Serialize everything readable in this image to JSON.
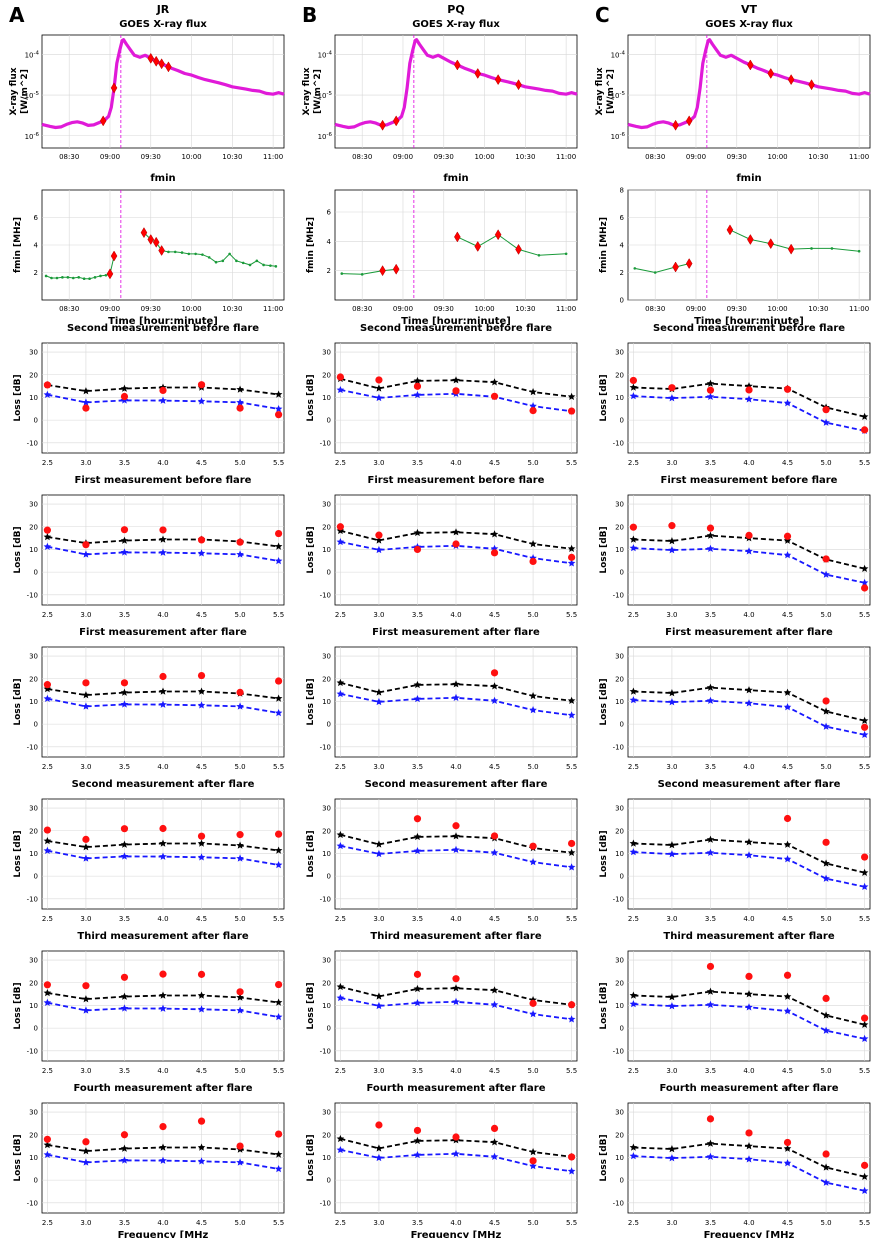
{
  "figure": {
    "panel_letters": [
      "A",
      "B",
      "C"
    ],
    "column_titles": [
      "JR",
      "PQ",
      "VT"
    ],
    "goes_title": "GOES X-ray flux",
    "goes_ylabel_line1": "X-ray flux",
    "goes_ylabel_line2": "[W/m^2]",
    "fmin_title": "fmin",
    "fmin_ylabel": "fmin [MHz]",
    "time_xlabel": "Time [hour:minute]",
    "loss_ylabel": "Loss [dB]",
    "freq_xlabel": "Frequency [MHz",
    "time_ticks": [
      "08:30",
      "09:00",
      "09:30",
      "10:00",
      "10:30",
      "11:00"
    ],
    "freq_ticks": [
      "2.5",
      "3.0",
      "3.5",
      "4.0",
      "4.5",
      "5.0",
      "5.5"
    ],
    "goes_ticks": [
      "10^-6",
      "10^-5",
      "10^-4"
    ],
    "loss_ticks": [
      "-10",
      "0",
      "10",
      "20",
      "30"
    ]
  },
  "chart_data": {
    "type": "multi-panel",
    "goes": {
      "type": "line",
      "scale": "log",
      "ylim": [
        5e-07,
        0.0003
      ],
      "xlim_minutes": [
        490,
        668
      ],
      "flare_start_minutes": 548,
      "curve": [
        [
          490,
          1.9e-06
        ],
        [
          496,
          1.7e-06
        ],
        [
          500,
          1.6e-06
        ],
        [
          504,
          1.65e-06
        ],
        [
          508,
          1.9e-06
        ],
        [
          512,
          2.1e-06
        ],
        [
          516,
          2.2e-06
        ],
        [
          520,
          2.05e-06
        ],
        [
          524,
          1.8e-06
        ],
        [
          528,
          1.85e-06
        ],
        [
          532,
          2.1e-06
        ],
        [
          536,
          2.4e-06
        ],
        [
          539,
          3e-06
        ],
        [
          541,
          5e-06
        ],
        [
          543,
          1.5e-05
        ],
        [
          545,
          6e-05
        ],
        [
          547,
          0.00012
        ],
        [
          549,
          0.00022
        ],
        [
          550,
          0.00023
        ],
        [
          552,
          0.00018
        ],
        [
          555,
          0.00013
        ],
        [
          558,
          9.5e-05
        ],
        [
          562,
          8.5e-05
        ],
        [
          566,
          9.5e-05
        ],
        [
          570,
          8e-05
        ],
        [
          575,
          6.5e-05
        ],
        [
          580,
          5.5e-05
        ],
        [
          585,
          4.6e-05
        ],
        [
          590,
          4e-05
        ],
        [
          595,
          3.4e-05
        ],
        [
          600,
          3.1e-05
        ],
        [
          605,
          2.7e-05
        ],
        [
          610,
          2.4e-05
        ],
        [
          615,
          2.2e-05
        ],
        [
          620,
          2e-05
        ],
        [
          625,
          1.8e-05
        ],
        [
          630,
          1.6e-05
        ],
        [
          635,
          1.5e-05
        ],
        [
          640,
          1.4e-05
        ],
        [
          645,
          1.3e-05
        ],
        [
          650,
          1.25e-05
        ],
        [
          655,
          1.1e-05
        ],
        [
          660,
          1.05e-05
        ],
        [
          664,
          1.15e-05
        ],
        [
          668,
          1.05e-05
        ]
      ],
      "markers": [
        {
          "column": "JR",
          "minutes": [
            535,
            543,
            570,
            574,
            578,
            583
          ]
        },
        {
          "column": "PQ",
          "minutes": [
            525,
            535,
            580,
            595,
            610,
            625
          ]
        },
        {
          "column": "VT",
          "minutes": [
            525,
            535,
            580,
            595,
            610,
            625
          ]
        }
      ]
    },
    "fmin": [
      {
        "column": "JR",
        "ylim": [
          0,
          8
        ],
        "yticks": [
          2,
          4,
          6
        ],
        "points": [
          [
            493,
            1.75
          ],
          [
            497,
            1.6
          ],
          [
            501,
            1.6
          ],
          [
            505,
            1.65
          ],
          [
            509,
            1.65
          ],
          [
            513,
            1.6
          ],
          [
            517,
            1.65
          ],
          [
            521,
            1.55
          ],
          [
            525,
            1.55
          ],
          [
            529,
            1.65
          ],
          [
            533,
            1.75
          ],
          [
            537,
            1.8
          ],
          [
            540,
            1.9
          ],
          [
            543,
            3.2
          ],
          [
            565,
            4.9
          ],
          [
            570,
            4.4
          ],
          [
            574,
            4.2
          ],
          [
            578,
            3.6
          ],
          [
            583,
            3.5
          ],
          [
            588,
            3.5
          ],
          [
            593,
            3.45
          ],
          [
            598,
            3.35
          ],
          [
            603,
            3.35
          ],
          [
            608,
            3.3
          ],
          [
            613,
            3.1
          ],
          [
            618,
            2.75
          ],
          [
            623,
            2.85
          ],
          [
            628,
            3.35
          ],
          [
            633,
            2.85
          ],
          [
            638,
            2.7
          ],
          [
            643,
            2.55
          ],
          [
            648,
            2.85
          ],
          [
            653,
            2.55
          ],
          [
            658,
            2.5
          ],
          [
            662,
            2.45
          ]
        ],
        "red": [
          [
            540,
            1.9
          ],
          [
            543,
            3.2
          ],
          [
            565,
            4.9
          ],
          [
            570,
            4.4
          ],
          [
            574,
            4.2
          ],
          [
            578,
            3.6
          ]
        ]
      },
      {
        "column": "PQ",
        "ylim": [
          0,
          7.5
        ],
        "yticks": [
          2,
          4,
          6
        ],
        "points": [
          [
            495,
            1.8
          ],
          [
            510,
            1.75
          ],
          [
            525,
            2.0
          ],
          [
            535,
            2.1
          ],
          [
            580,
            4.3
          ],
          [
            595,
            3.65
          ],
          [
            610,
            4.45
          ],
          [
            625,
            3.45
          ],
          [
            640,
            3.05
          ],
          [
            660,
            3.15
          ]
        ],
        "red": [
          [
            525,
            2.0
          ],
          [
            535,
            2.1
          ],
          [
            580,
            4.3
          ],
          [
            595,
            3.65
          ],
          [
            610,
            4.45
          ],
          [
            625,
            3.45
          ]
        ]
      },
      {
        "column": "VT",
        "ylim": [
          0,
          8
        ],
        "yticks": [
          0,
          2,
          4,
          6,
          8
        ],
        "points": [
          [
            495,
            2.3
          ],
          [
            510,
            2.0
          ],
          [
            525,
            2.4
          ],
          [
            535,
            2.65
          ],
          [
            565,
            5.1
          ],
          [
            580,
            4.4
          ],
          [
            595,
            4.1
          ],
          [
            610,
            3.7
          ],
          [
            625,
            3.75
          ],
          [
            640,
            3.75
          ],
          [
            660,
            3.55
          ]
        ],
        "red": [
          [
            525,
            2.4
          ],
          [
            535,
            2.65
          ],
          [
            565,
            5.1
          ],
          [
            580,
            4.4
          ],
          [
            595,
            4.1
          ],
          [
            610,
            3.7
          ]
        ]
      }
    ],
    "loss": {
      "type": "line+scatter",
      "x": [
        2.5,
        3.0,
        3.5,
        4.0,
        4.5,
        5.0,
        5.5
      ],
      "ylim": [
        -14.5,
        34
      ],
      "xlim": [
        2.43,
        5.57
      ],
      "rows": [
        "Second measurement before flare",
        "First measurement before flare",
        "First measurement after flare",
        "Second measurement after flare",
        "Third measurement after flare",
        "Fourth measurement after flare"
      ],
      "columns": [
        {
          "name": "JR",
          "black": [
            15.5,
            12.8,
            13.9,
            14.4,
            14.4,
            13.5,
            11.3
          ],
          "blue": [
            11.2,
            7.8,
            8.7,
            8.6,
            8.3,
            7.8,
            4.9
          ],
          "red": [
            [
              15.5,
              5.3,
              10.4,
              13.1,
              15.6,
              5.3,
              2.4
            ],
            [
              18.5,
              12.1,
              18.7,
              18.6,
              14.2,
              13.2,
              17.0
            ],
            [
              17.4,
              18.2,
              18.2,
              21.0,
              21.4,
              14.0,
              19.0
            ],
            [
              20.3,
              16.2,
              20.9,
              21.0,
              17.6,
              18.3,
              18.5
            ],
            [
              19.1,
              18.7,
              22.4,
              23.8,
              23.7,
              16.0,
              19.2
            ],
            [
              18.0,
              16.9,
              20.0,
              23.6,
              26.0,
              15.0,
              20.3
            ]
          ]
        },
        {
          "name": "PQ",
          "black": [
            18.2,
            14.0,
            17.3,
            17.6,
            16.7,
            12.4,
            10.3
          ],
          "blue": [
            13.3,
            9.8,
            11.1,
            11.6,
            10.3,
            6.2,
            3.9
          ],
          "red": [
            [
              19.0,
              17.7,
              14.9,
              12.9,
              10.5,
              4.2,
              4.0
            ],
            [
              20.0,
              16.3,
              10.0,
              12.4,
              8.5,
              4.7,
              6.5
            ],
            [
              null,
              null,
              null,
              null,
              22.6,
              null,
              null
            ],
            [
              null,
              null,
              25.3,
              22.2,
              17.7,
              13.2,
              14.4
            ],
            [
              null,
              null,
              23.7,
              21.8,
              null,
              10.9,
              10.3
            ],
            [
              null,
              24.3,
              21.9,
              19.0,
              22.8,
              8.5,
              10.2
            ]
          ]
        },
        {
          "name": "VT",
          "black": [
            14.4,
            13.7,
            16.1,
            15.0,
            13.9,
            5.6,
            1.5
          ],
          "blue": [
            10.6,
            9.7,
            10.3,
            9.2,
            7.5,
            -1.1,
            -4.7
          ],
          "red": [
            [
              17.5,
              14.3,
              13.2,
              13.3,
              13.6,
              4.6,
              -4.3
            ],
            [
              19.8,
              20.5,
              19.4,
              16.2,
              15.8,
              5.8,
              -7.0
            ],
            [
              null,
              null,
              null,
              null,
              null,
              10.2,
              -1.4
            ],
            [
              null,
              null,
              null,
              null,
              25.4,
              14.9,
              8.4
            ],
            [
              null,
              null,
              27.2,
              22.8,
              23.3,
              13.1,
              4.4
            ],
            [
              null,
              null,
              27.0,
              20.8,
              16.6,
              11.5,
              6.5
            ]
          ]
        }
      ]
    }
  }
}
